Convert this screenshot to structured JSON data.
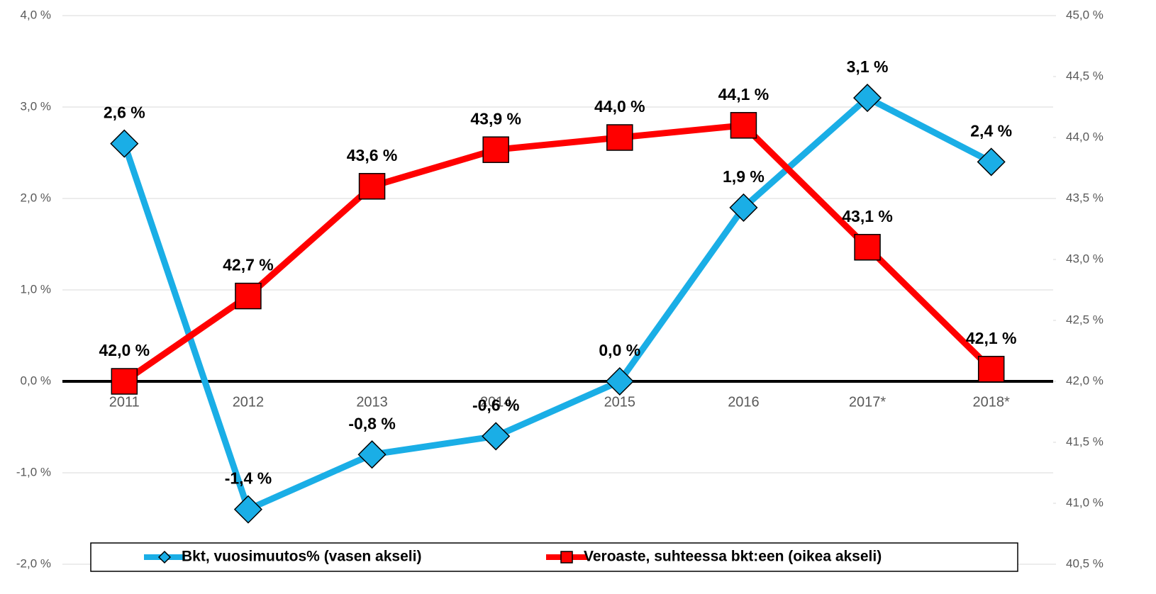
{
  "chart_data": {
    "type": "line",
    "categories": [
      "2011",
      "2012",
      "2013",
      "2014",
      "2015",
      "2016",
      "2017*",
      "2018*"
    ],
    "series": [
      {
        "name": "Bkt, vuosimuutos% (vasen akseli)",
        "color": "#1aaee6",
        "marker": "diamond",
        "values": [
          2.6,
          -1.4,
          -0.8,
          -0.6,
          0.0,
          1.9,
          3.1,
          2.4
        ],
        "value_labels": [
          "2,6 %",
          "-1,4 %",
          "-0,8 %",
          "-0,6 %",
          "0,0 %",
          "1,9 %",
          "3,1 %",
          "2,4 %"
        ]
      },
      {
        "name": "Veroaste, suhteessa bkt:een (oikea akseli)",
        "color": "#ff0000",
        "marker": "square",
        "axis": "y2",
        "values": [
          42.0,
          42.7,
          43.6,
          43.9,
          44.0,
          44.1,
          43.1,
          42.1
        ],
        "value_labels": [
          "42,0 %",
          "42,7 %",
          "43,6 %",
          "43,9 %",
          "44,0 %",
          "44,1 %",
          "43,1 %",
          "42,1 %"
        ]
      }
    ],
    "ylim": [
      -2,
      4
    ],
    "yticks": [
      {
        "value": -2,
        "label": "-2,0 %"
      },
      {
        "value": -1,
        "label": "-1,0 %"
      },
      {
        "value": 0,
        "label": "0,0 %"
      },
      {
        "value": 1,
        "label": "1,0 %"
      },
      {
        "value": 2,
        "label": "2,0 %"
      },
      {
        "value": 3,
        "label": "3,0 %"
      },
      {
        "value": 4,
        "label": "4,0 %"
      }
    ],
    "y2lim": [
      40.5,
      45
    ],
    "y2ticks": [
      {
        "value": 40.5,
        "label": "40,5 %"
      },
      {
        "value": 41,
        "label": "41,0 %"
      },
      {
        "value": 41.5,
        "label": "41,5 %"
      },
      {
        "value": 42,
        "label": "42,0 %"
      },
      {
        "value": 42.5,
        "label": "42,5 %"
      },
      {
        "value": 43,
        "label": "43,0 %"
      },
      {
        "value": 43.5,
        "label": "43,5 %"
      },
      {
        "value": 44,
        "label": "44,0 %"
      },
      {
        "value": 44.5,
        "label": "44,5 %"
      },
      {
        "value": 45,
        "label": "45,0 %"
      }
    ],
    "grid": true,
    "legend": "bottom"
  }
}
